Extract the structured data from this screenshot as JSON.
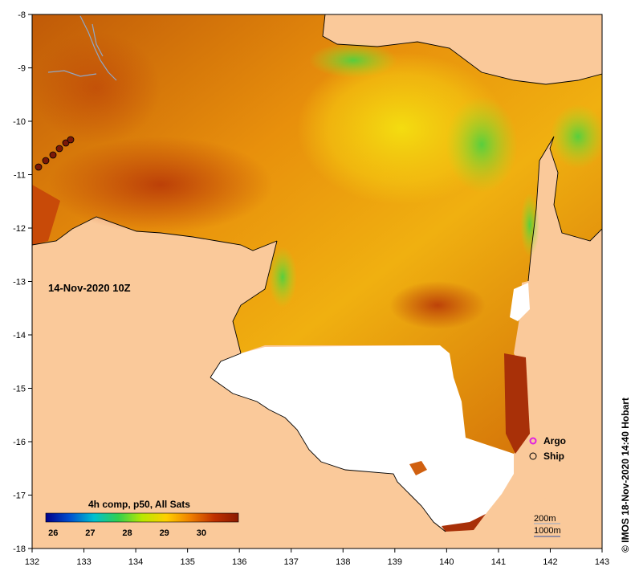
{
  "map": {
    "timestamp_label": "14-Nov-2020 10Z",
    "credit": "© IMOS 18-Nov-2020 14:40 Hobart",
    "x_ticks": [
      "132",
      "133",
      "134",
      "135",
      "136",
      "137",
      "138",
      "139",
      "140",
      "141",
      "142",
      "143"
    ],
    "y_ticks": [
      "-8",
      "-9",
      "-10",
      "-11",
      "-12",
      "-13",
      "-14",
      "-15",
      "-16",
      "-17",
      "-18"
    ],
    "x_range": [
      132,
      143
    ],
    "y_range": [
      -18,
      -8
    ],
    "legend": {
      "argo_label": "Argo",
      "ship_label": "Ship",
      "argo_color": "#e020e0"
    },
    "colorbar": {
      "title": "4h comp, p50, All Sats",
      "ticks": [
        "26",
        "27",
        "28",
        "29",
        "30"
      ],
      "range": [
        25.8,
        31.0
      ],
      "colors": [
        "#00008b",
        "#0050d0",
        "#00c0d0",
        "#30d050",
        "#b8e800",
        "#ffd000",
        "#f08000",
        "#c03000",
        "#8b1a00"
      ]
    },
    "depth_contours": {
      "shallow_label": "200m",
      "deep_label": "1000m",
      "shallow_color": "#90a8c8",
      "deep_color": "#3050a0"
    },
    "colors": {
      "land": "#fac99a",
      "cloud": "#ffffff",
      "coast_line": "#000000"
    }
  }
}
